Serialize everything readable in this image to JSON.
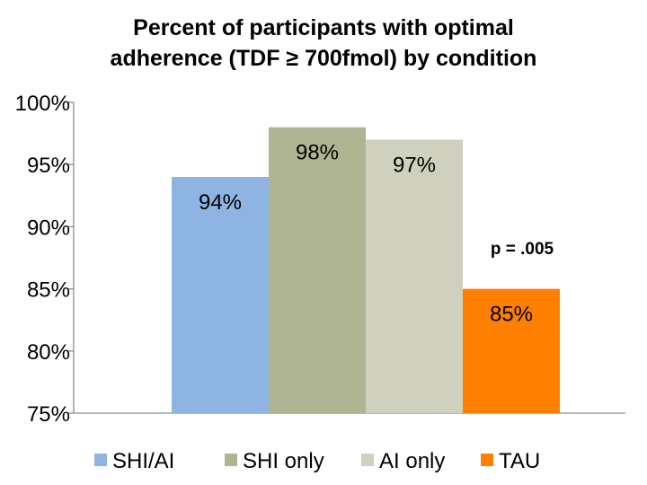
{
  "chart_data": {
    "type": "bar",
    "title_line1": "Percent of participants with optimal",
    "title_line2": "adherence (TDF ≥ 700fmol) by condition",
    "categories": [
      "SHI/AI",
      "SHI only",
      "AI only",
      "TAU"
    ],
    "values": [
      94,
      98,
      97,
      85
    ],
    "data_labels": [
      "94%",
      "98%",
      "97%",
      "85%"
    ],
    "colors": [
      "#8eb4e3",
      "#afb593",
      "#cfd0bd",
      "#ff8000"
    ],
    "ylim": [
      75,
      100
    ],
    "yticks": [
      100,
      95,
      90,
      85,
      80,
      75
    ],
    "ytick_labels": [
      "100%",
      "95%",
      "90%",
      "85%",
      "80%",
      "75%"
    ],
    "annotation": "p = .005",
    "legend_position": "bottom",
    "grid": false
  }
}
